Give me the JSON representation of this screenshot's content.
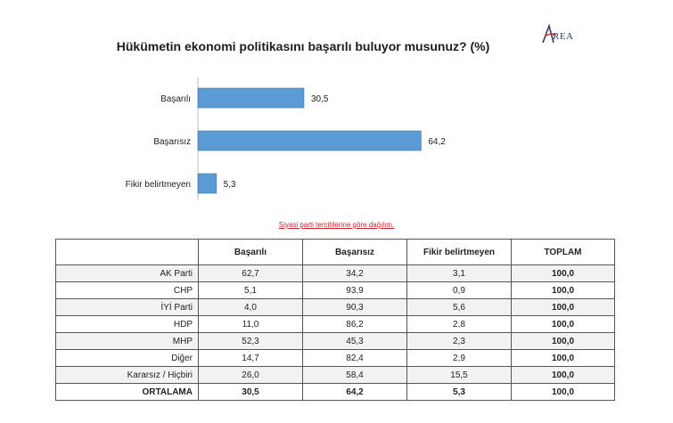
{
  "logo": {
    "text": "AREA",
    "letter": "A",
    "rest": "REA"
  },
  "chart_data": {
    "type": "bar",
    "orientation": "horizontal",
    "title": "Hükümetin ekonomi politikasını başarılı buluyor musunuz? (%)",
    "categories": [
      "Başarılı",
      "Başarısız",
      "Fikir belirtmeyen"
    ],
    "values": [
      30.5,
      64.2,
      5.3
    ],
    "value_labels": [
      "30,5",
      "64,2",
      "5,3"
    ],
    "xlim": [
      0,
      70
    ],
    "grid": false,
    "legend": "none",
    "colors": {
      "bar": "#5b9bd5",
      "bar_stroke": "#41719c"
    }
  },
  "subtitle": "Siyasi parti tercihlerine göre dağılım.",
  "table": {
    "headers": [
      "",
      "Başarılı",
      "Başarısız",
      "Fikir belirtmeyen",
      "TOPLAM"
    ],
    "rows": [
      {
        "label": "AK Parti",
        "values": [
          "62,7",
          "34,2",
          "3,1"
        ],
        "total": "100,0"
      },
      {
        "label": "CHP",
        "values": [
          "5,1",
          "93,9",
          "0,9"
        ],
        "total": "100,0"
      },
      {
        "label": "İYİ Parti",
        "values": [
          "4,0",
          "90,3",
          "5,6"
        ],
        "total": "100,0"
      },
      {
        "label": "HDP",
        "values": [
          "11,0",
          "86,2",
          "2,8"
        ],
        "total": "100,0"
      },
      {
        "label": "MHP",
        "values": [
          "52,3",
          "45,3",
          "2,3"
        ],
        "total": "100,0"
      },
      {
        "label": "Diğer",
        "values": [
          "14,7",
          "82,4",
          "2,9"
        ],
        "total": "100,0"
      },
      {
        "label": "Kararsız / Hiçbiri",
        "values": [
          "26,0",
          "58,4",
          "15,5"
        ],
        "total": "100,0"
      }
    ],
    "average": {
      "label": "ORTALAMA",
      "values": [
        "30,5",
        "64,2",
        "5,3"
      ],
      "total": "100,0"
    }
  }
}
